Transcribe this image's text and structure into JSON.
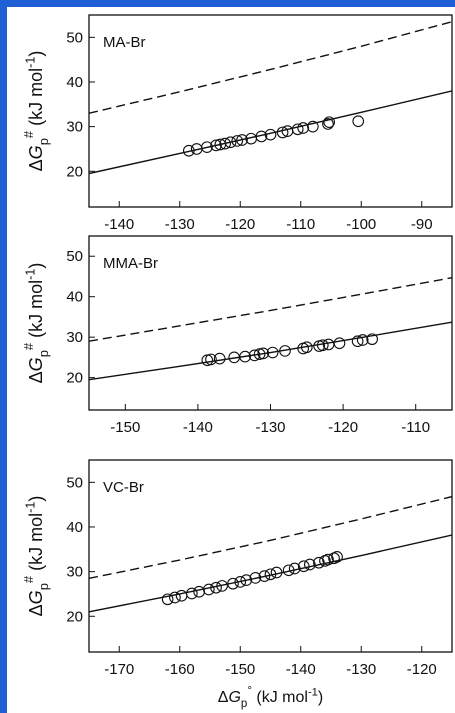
{
  "figure": {
    "frame_color": "#1f5fd6",
    "line_color": "#111111",
    "marker_color": "#111111",
    "xlabel_main": "ΔGp° (kJ mol⁻¹)",
    "ylabel_main": "ΔGp# (kJ mol⁻¹)"
  },
  "chart_data": [
    {
      "type": "scatter",
      "title": "MA-Br",
      "xlabel": "ΔGp° (kJ mol⁻¹)",
      "ylabel": "ΔGp# (kJ mol⁻¹)",
      "xlim": [
        -145,
        -85
      ],
      "ylim": [
        12,
        55
      ],
      "xticks": [
        -140,
        -130,
        -120,
        -110,
        -100,
        -90
      ],
      "yticks": [
        20,
        30,
        40,
        50
      ],
      "series": [
        {
          "style": "points",
          "x": [
            -128.5,
            -127.2,
            -125.5,
            -124.0,
            -123.3,
            -122.5,
            -121.6,
            -120.5,
            -119.7,
            -118.2,
            -116.5,
            -115.0,
            -113.0,
            -112.2,
            -110.5,
            -109.6,
            -108.0,
            -105.5,
            -105.3,
            -100.5
          ],
          "y": [
            24.6,
            25.0,
            25.4,
            25.8,
            26.0,
            26.2,
            26.5,
            26.8,
            27.0,
            27.3,
            27.8,
            28.2,
            28.7,
            29.0,
            29.4,
            29.7,
            30.0,
            30.6,
            31.0,
            31.2
          ]
        },
        {
          "style": "solid",
          "x": [
            -145,
            -130,
            -115,
            -100,
            -85
          ],
          "y": [
            19.5,
            24.0,
            28.5,
            33.2,
            38.0
          ]
        },
        {
          "style": "dashed",
          "x": [
            -145,
            -130,
            -115,
            -100,
            -85
          ],
          "y": [
            33.0,
            37.8,
            42.8,
            48.0,
            53.5
          ]
        }
      ]
    },
    {
      "type": "scatter",
      "title": "MMA-Br",
      "xlabel": "ΔGp° (kJ mol⁻¹)",
      "ylabel": "ΔGp# (kJ mol⁻¹)",
      "xlim": [
        -155,
        -105
      ],
      "ylim": [
        12,
        55
      ],
      "xticks": [
        -150,
        -140,
        -130,
        -120,
        -110
      ],
      "yticks": [
        20,
        30,
        40,
        50
      ],
      "series": [
        {
          "style": "points",
          "x": [
            -138.7,
            -138.2,
            -137.0,
            -135.0,
            -133.5,
            -132.2,
            -131.5,
            -131.0,
            -129.7,
            -128.0,
            -125.5,
            -125.0,
            -123.3,
            -122.8,
            -122.0,
            -120.5,
            -118.0,
            -117.3,
            -116.0
          ],
          "y": [
            24.3,
            24.5,
            24.7,
            25.0,
            25.2,
            25.5,
            25.8,
            26.0,
            26.2,
            26.6,
            27.2,
            27.5,
            27.8,
            28.0,
            28.2,
            28.5,
            29.0,
            29.3,
            29.5
          ]
        },
        {
          "style": "solid",
          "x": [
            -155,
            -142.5,
            -130,
            -117.5,
            -105
          ],
          "y": [
            19.5,
            22.8,
            26.2,
            29.9,
            33.7
          ]
        },
        {
          "style": "dashed",
          "x": [
            -155,
            -142.5,
            -130,
            -117.5,
            -105
          ],
          "y": [
            29.0,
            32.8,
            36.6,
            40.6,
            44.7
          ]
        }
      ]
    },
    {
      "type": "scatter",
      "title": "VC-Br",
      "xlabel": "ΔGp° (kJ mol⁻¹)",
      "ylabel": "ΔGp# (kJ mol⁻¹)",
      "xlim": [
        -175,
        -115
      ],
      "ylim": [
        12,
        55
      ],
      "xticks": [
        -170,
        -160,
        -150,
        -140,
        -130,
        -120
      ],
      "yticks": [
        20,
        30,
        40,
        50
      ],
      "series": [
        {
          "style": "points",
          "x": [
            -162.0,
            -160.8,
            -159.7,
            -158.0,
            -156.8,
            -155.2,
            -154.0,
            -153.0,
            -151.2,
            -150.0,
            -149.0,
            -147.5,
            -146.0,
            -145.0,
            -144.0,
            -142.0,
            -141.0,
            -139.5,
            -138.5,
            -137.0,
            -136.0,
            -135.5,
            -134.5,
            -134.0
          ],
          "y": [
            23.8,
            24.2,
            24.6,
            25.1,
            25.5,
            26.0,
            26.4,
            26.8,
            27.3,
            27.7,
            28.1,
            28.6,
            29.0,
            29.4,
            29.8,
            30.3,
            30.7,
            31.2,
            31.6,
            32.0,
            32.4,
            32.7,
            33.0,
            33.3
          ]
        },
        {
          "style": "solid",
          "x": [
            -175,
            -160,
            -145,
            -130,
            -115
          ],
          "y": [
            21.0,
            25.0,
            29.2,
            33.6,
            38.2
          ]
        },
        {
          "style": "dashed",
          "x": [
            -175,
            -160,
            -145,
            -130,
            -115
          ],
          "y": [
            28.5,
            32.6,
            37.0,
            41.8,
            46.8
          ]
        }
      ]
    }
  ]
}
